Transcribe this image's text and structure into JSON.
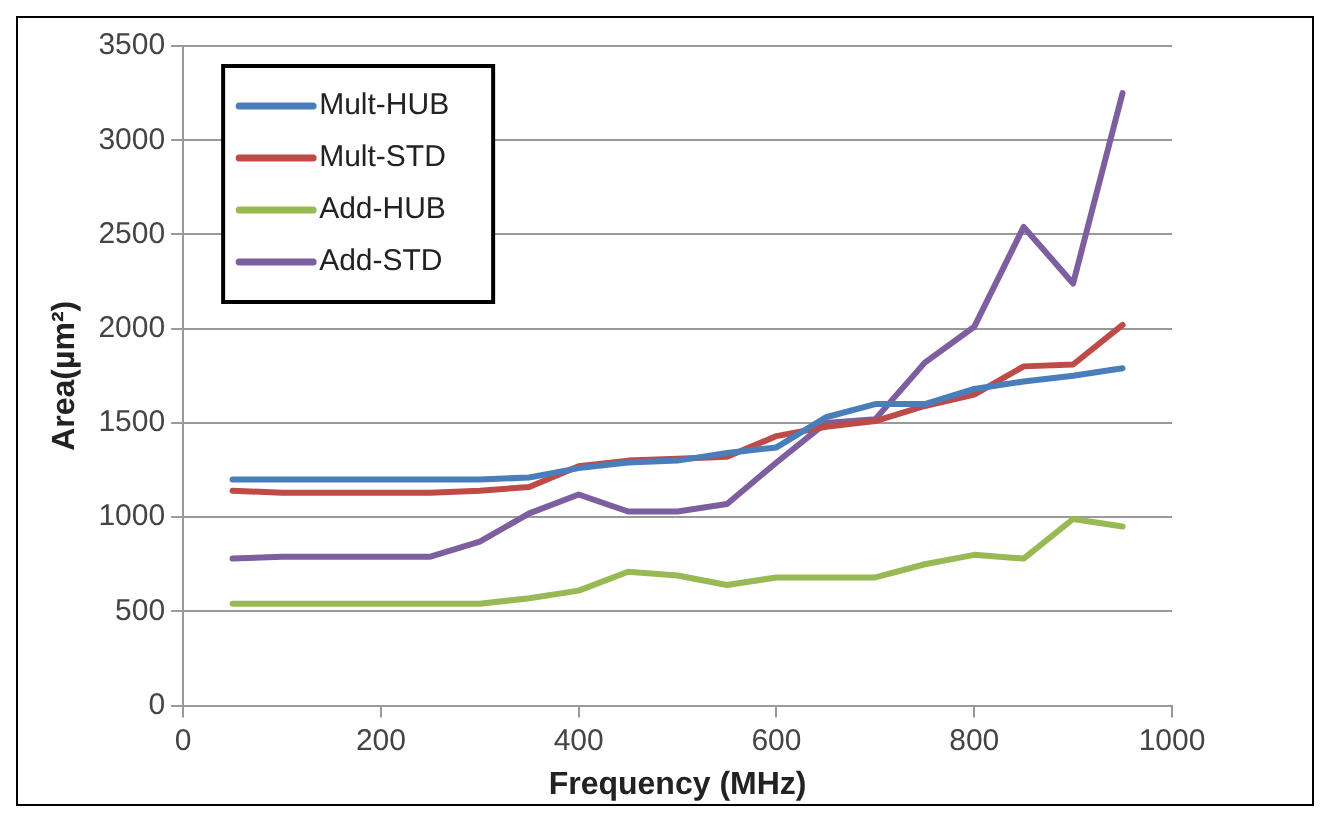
{
  "chart_data": {
    "type": "line",
    "xlabel": "Frequency (MHz)",
    "ylabel": "Area(µm²)",
    "x": [
      50,
      100,
      150,
      200,
      250,
      300,
      350,
      400,
      450,
      500,
      550,
      600,
      650,
      700,
      750,
      800,
      850,
      900,
      950
    ],
    "series": [
      {
        "name": "Mult-HUB",
        "color": "#4a7ebb",
        "values": [
          1200,
          1200,
          1200,
          1200,
          1200,
          1200,
          1210,
          1260,
          1290,
          1300,
          1340,
          1370,
          1530,
          1600,
          1600,
          1680,
          1720,
          1750,
          1790
        ]
      },
      {
        "name": "Mult-STD",
        "color": "#be4b48",
        "values": [
          1140,
          1130,
          1130,
          1130,
          1130,
          1140,
          1160,
          1270,
          1300,
          1310,
          1320,
          1430,
          1480,
          1510,
          1590,
          1650,
          1800,
          1810,
          2020
        ]
      },
      {
        "name": "Add-HUB",
        "color": "#98b954",
        "values": [
          540,
          540,
          540,
          540,
          540,
          540,
          570,
          610,
          710,
          690,
          640,
          680,
          680,
          680,
          750,
          800,
          780,
          990,
          950
        ]
      },
      {
        "name": "Add-STD",
        "color": "#7d5fa0",
        "values": [
          780,
          790,
          790,
          790,
          790,
          870,
          1020,
          1120,
          1030,
          1030,
          1070,
          1290,
          1500,
          1520,
          1820,
          2010,
          2540,
          2240,
          3250
        ]
      }
    ],
    "xlim": [
      0,
      1000
    ],
    "xticks": [
      0,
      200,
      400,
      600,
      800,
      1000
    ],
    "ylim": [
      0,
      3500
    ],
    "yticks": [
      0,
      500,
      1000,
      1500,
      2000,
      2500,
      3000,
      3500
    ],
    "grid": "y",
    "legend": "top left",
    "marker": "none",
    "line_style": "solid"
  }
}
